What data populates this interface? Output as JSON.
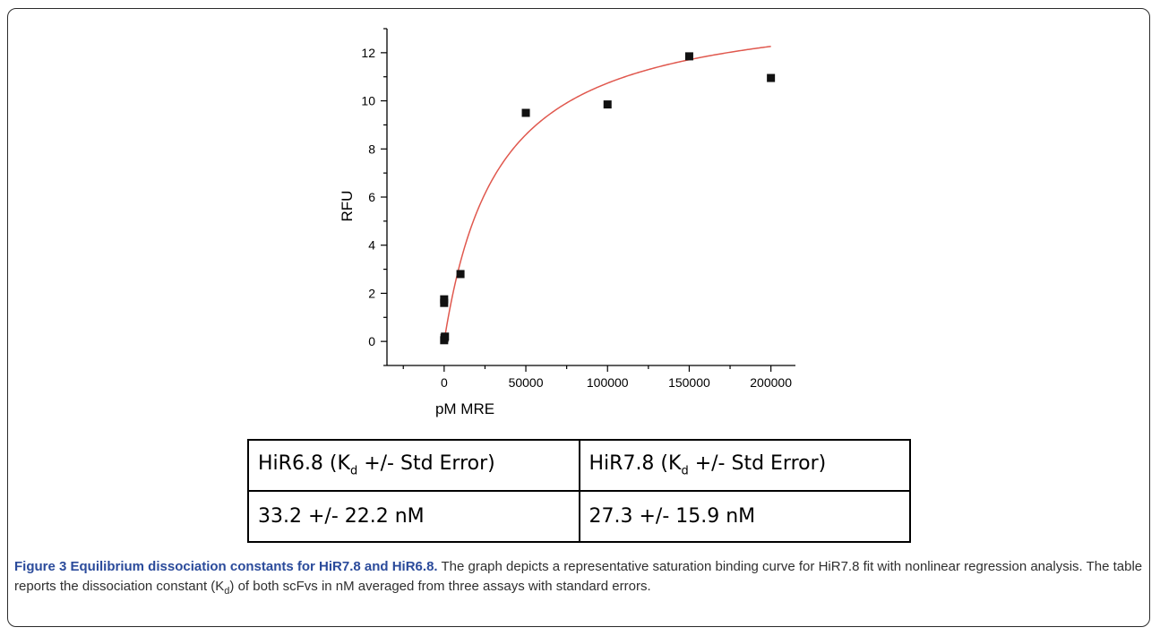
{
  "chart_data": {
    "type": "scatter",
    "xlabel": "pM MRE",
    "ylabel": "RFU",
    "xlim": [
      -35000,
      215000
    ],
    "ylim": [
      -1,
      13
    ],
    "xticks": [
      0,
      50000,
      100000,
      150000,
      200000
    ],
    "yticks": [
      0,
      2,
      4,
      6,
      8,
      10,
      12
    ],
    "points": [
      {
        "x": 0,
        "y": 0.05
      },
      {
        "x": 200,
        "y": 0.15
      },
      {
        "x": 500,
        "y": 0.2
      },
      {
        "x": 0,
        "y": 1.6
      },
      {
        "x": 0,
        "y": 1.75
      },
      {
        "x": 10000,
        "y": 2.8
      },
      {
        "x": 50000,
        "y": 9.5
      },
      {
        "x": 100000,
        "y": 9.85
      },
      {
        "x": 150000,
        "y": 11.85
      },
      {
        "x": 200000,
        "y": 10.95
      }
    ],
    "fit": {
      "model": "one-site saturation binding",
      "bmax": 14.3,
      "kd": 33200,
      "x_range": [
        0,
        200000
      ],
      "color": "#e0584e"
    },
    "marker_color": "#111111"
  },
  "table": {
    "header": [
      {
        "pre": "HiR6.8 (K",
        "sub": "d",
        "post": " +/- Std Error)"
      },
      {
        "pre": "HiR7.8 (K",
        "sub": "d",
        "post": " +/- Std Error)"
      }
    ],
    "row": [
      "33.2 +/- 22.2 nM",
      "27.3 +/- 15.9 nM"
    ]
  },
  "caption": {
    "title": "Figure 3 Equilibrium dissociation constants for HiR7.8 and HiR6.8.",
    "text_before_sub": " The graph depicts a representative saturation binding curve for HiR7.8 fit with nonlinear regression analysis. The table reports the dissociation constant (K",
    "sub": "d",
    "text_after_sub": ") of both scFvs in nM averaged from three assays with standard errors."
  }
}
